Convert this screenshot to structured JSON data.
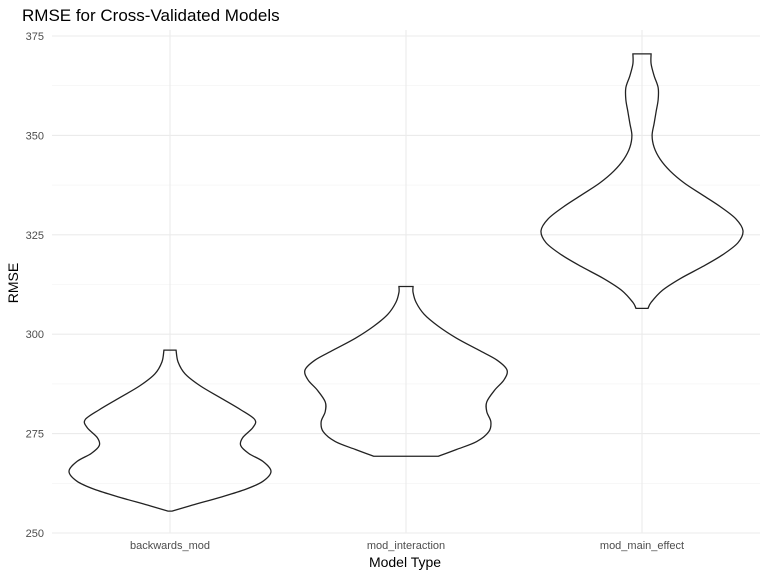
{
  "chart_data": {
    "type": "violin",
    "title": "RMSE for Cross-Validated Models",
    "xlabel": "Model Type",
    "ylabel": "RMSE",
    "ylim": [
      250,
      375
    ],
    "y_ticks": [
      250,
      275,
      300,
      325,
      350,
      375
    ],
    "grid": true,
    "categories": [
      "backwards_mod",
      "mod_interaction",
      "mod_main_effect"
    ],
    "series": [
      {
        "category": "backwards_mod",
        "min": 255.5,
        "max": 296,
        "density_profile": [
          {
            "rmse": 255.5,
            "halfwidth": 0.02
          },
          {
            "rmse": 257,
            "halfwidth": 0.22
          },
          {
            "rmse": 259,
            "halfwidth": 0.5
          },
          {
            "rmse": 261,
            "halfwidth": 0.75
          },
          {
            "rmse": 263,
            "halfwidth": 0.92
          },
          {
            "rmse": 265.5,
            "halfwidth": 1.0
          },
          {
            "rmse": 268,
            "halfwidth": 0.92
          },
          {
            "rmse": 270,
            "halfwidth": 0.78
          },
          {
            "rmse": 272,
            "halfwidth": 0.7
          },
          {
            "rmse": 274,
            "halfwidth": 0.72
          },
          {
            "rmse": 276.5,
            "halfwidth": 0.82
          },
          {
            "rmse": 278.5,
            "halfwidth": 0.84
          },
          {
            "rmse": 281,
            "halfwidth": 0.7
          },
          {
            "rmse": 284,
            "halfwidth": 0.5
          },
          {
            "rmse": 287,
            "halfwidth": 0.3
          },
          {
            "rmse": 290,
            "halfwidth": 0.15
          },
          {
            "rmse": 293,
            "halfwidth": 0.08
          },
          {
            "rmse": 296,
            "halfwidth": 0.06
          }
        ]
      },
      {
        "category": "mod_interaction",
        "min": 269.3,
        "max": 312,
        "density_profile": [
          {
            "rmse": 269.3,
            "halfwidth": 0.32
          },
          {
            "rmse": 271,
            "halfwidth": 0.5
          },
          {
            "rmse": 273,
            "halfwidth": 0.7
          },
          {
            "rmse": 275.5,
            "halfwidth": 0.82
          },
          {
            "rmse": 278,
            "halfwidth": 0.84
          },
          {
            "rmse": 280.5,
            "halfwidth": 0.8
          },
          {
            "rmse": 283,
            "halfwidth": 0.8
          },
          {
            "rmse": 286,
            "halfwidth": 0.88
          },
          {
            "rmse": 288.5,
            "halfwidth": 0.97
          },
          {
            "rmse": 291,
            "halfwidth": 1.0
          },
          {
            "rmse": 293.5,
            "halfwidth": 0.9
          },
          {
            "rmse": 296,
            "halfwidth": 0.72
          },
          {
            "rmse": 299,
            "halfwidth": 0.5
          },
          {
            "rmse": 302,
            "halfwidth": 0.32
          },
          {
            "rmse": 305,
            "halfwidth": 0.18
          },
          {
            "rmse": 308,
            "halfwidth": 0.1
          },
          {
            "rmse": 310.5,
            "halfwidth": 0.07
          },
          {
            "rmse": 312,
            "halfwidth": 0.07
          }
        ]
      },
      {
        "category": "mod_main_effect",
        "min": 306.5,
        "max": 370.5,
        "density_profile": [
          {
            "rmse": 306.5,
            "halfwidth": 0.06
          },
          {
            "rmse": 308,
            "halfwidth": 0.09
          },
          {
            "rmse": 311,
            "halfwidth": 0.2
          },
          {
            "rmse": 314,
            "halfwidth": 0.38
          },
          {
            "rmse": 317,
            "halfwidth": 0.6
          },
          {
            "rmse": 320,
            "halfwidth": 0.8
          },
          {
            "rmse": 323,
            "halfwidth": 0.95
          },
          {
            "rmse": 326,
            "halfwidth": 1.0
          },
          {
            "rmse": 329,
            "halfwidth": 0.93
          },
          {
            "rmse": 332,
            "halfwidth": 0.78
          },
          {
            "rmse": 335,
            "halfwidth": 0.6
          },
          {
            "rmse": 338,
            "halfwidth": 0.42
          },
          {
            "rmse": 341,
            "halfwidth": 0.28
          },
          {
            "rmse": 344,
            "halfwidth": 0.18
          },
          {
            "rmse": 347,
            "halfwidth": 0.12
          },
          {
            "rmse": 350,
            "halfwidth": 0.1
          },
          {
            "rmse": 353,
            "halfwidth": 0.12
          },
          {
            "rmse": 356,
            "halfwidth": 0.14
          },
          {
            "rmse": 359,
            "halfwidth": 0.16
          },
          {
            "rmse": 362,
            "halfwidth": 0.16
          },
          {
            "rmse": 365,
            "halfwidth": 0.12
          },
          {
            "rmse": 368,
            "halfwidth": 0.09
          },
          {
            "rmse": 370.5,
            "halfwidth": 0.09
          }
        ]
      }
    ]
  }
}
